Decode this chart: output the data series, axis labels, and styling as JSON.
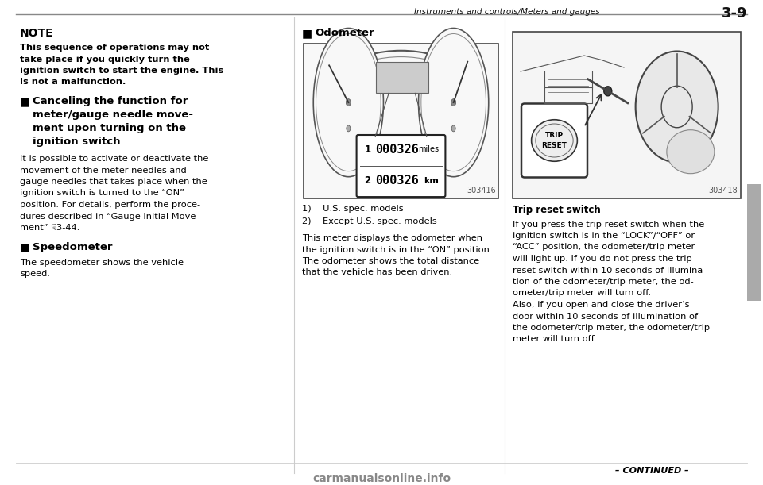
{
  "bg_color": "#ffffff",
  "header_text": "Instruments and controls/Meters and gauges",
  "header_page": "3-9",
  "col1": {
    "note_title": "NOTE",
    "note_body": "This sequence of operations may not\ntake place if you quickly turn the\nignition switch to start the engine. This\nis not a malfunction.",
    "section1_title_lines": [
      "Canceling the function for",
      "meter/gauge needle move-",
      "ment upon turning on the",
      "ignition switch"
    ],
    "section1_body": "It is possible to activate or deactivate the\nmovement of the meter needles and\ngauge needles that takes place when the\nignition switch is turned to the “ON”\nposition. For details, perform the proce-\ndures described in “Gauge Initial Move-\nment” ☟3-44.",
    "section2_title": "Speedometer",
    "section2_body": "The speedometer shows the vehicle\nspeed."
  },
  "col2": {
    "section_title": "Odometer",
    "image_caption1": "1)    U.S. spec. models",
    "image_caption2": "2)    Except U.S. spec. models",
    "image_code": "303416",
    "body_text": "This meter displays the odometer when\nthe ignition switch is in the “ON” position.\nThe odometer shows the total distance\nthat the vehicle has been driven."
  },
  "col3": {
    "image_code": "303418",
    "image_caption": "Trip reset switch",
    "body_text": "If you press the trip reset switch when the\nignition switch is in the “LOCK”/“OFF” or\n“ACC” position, the odometer/trip meter\nwill light up. If you do not press the trip\nreset switch within 10 seconds of illumina-\ntion of the odometer/trip meter, the od-\nometer/trip meter will turn off.\nAlso, if you open and close the driver’s\ndoor within 10 seconds of illumination of\nthe odometer/trip meter, the odometer/trip\nmeter will turn off."
  },
  "footer_text": "– CONTINUED –",
  "watermark": "carmanualsonline.info"
}
